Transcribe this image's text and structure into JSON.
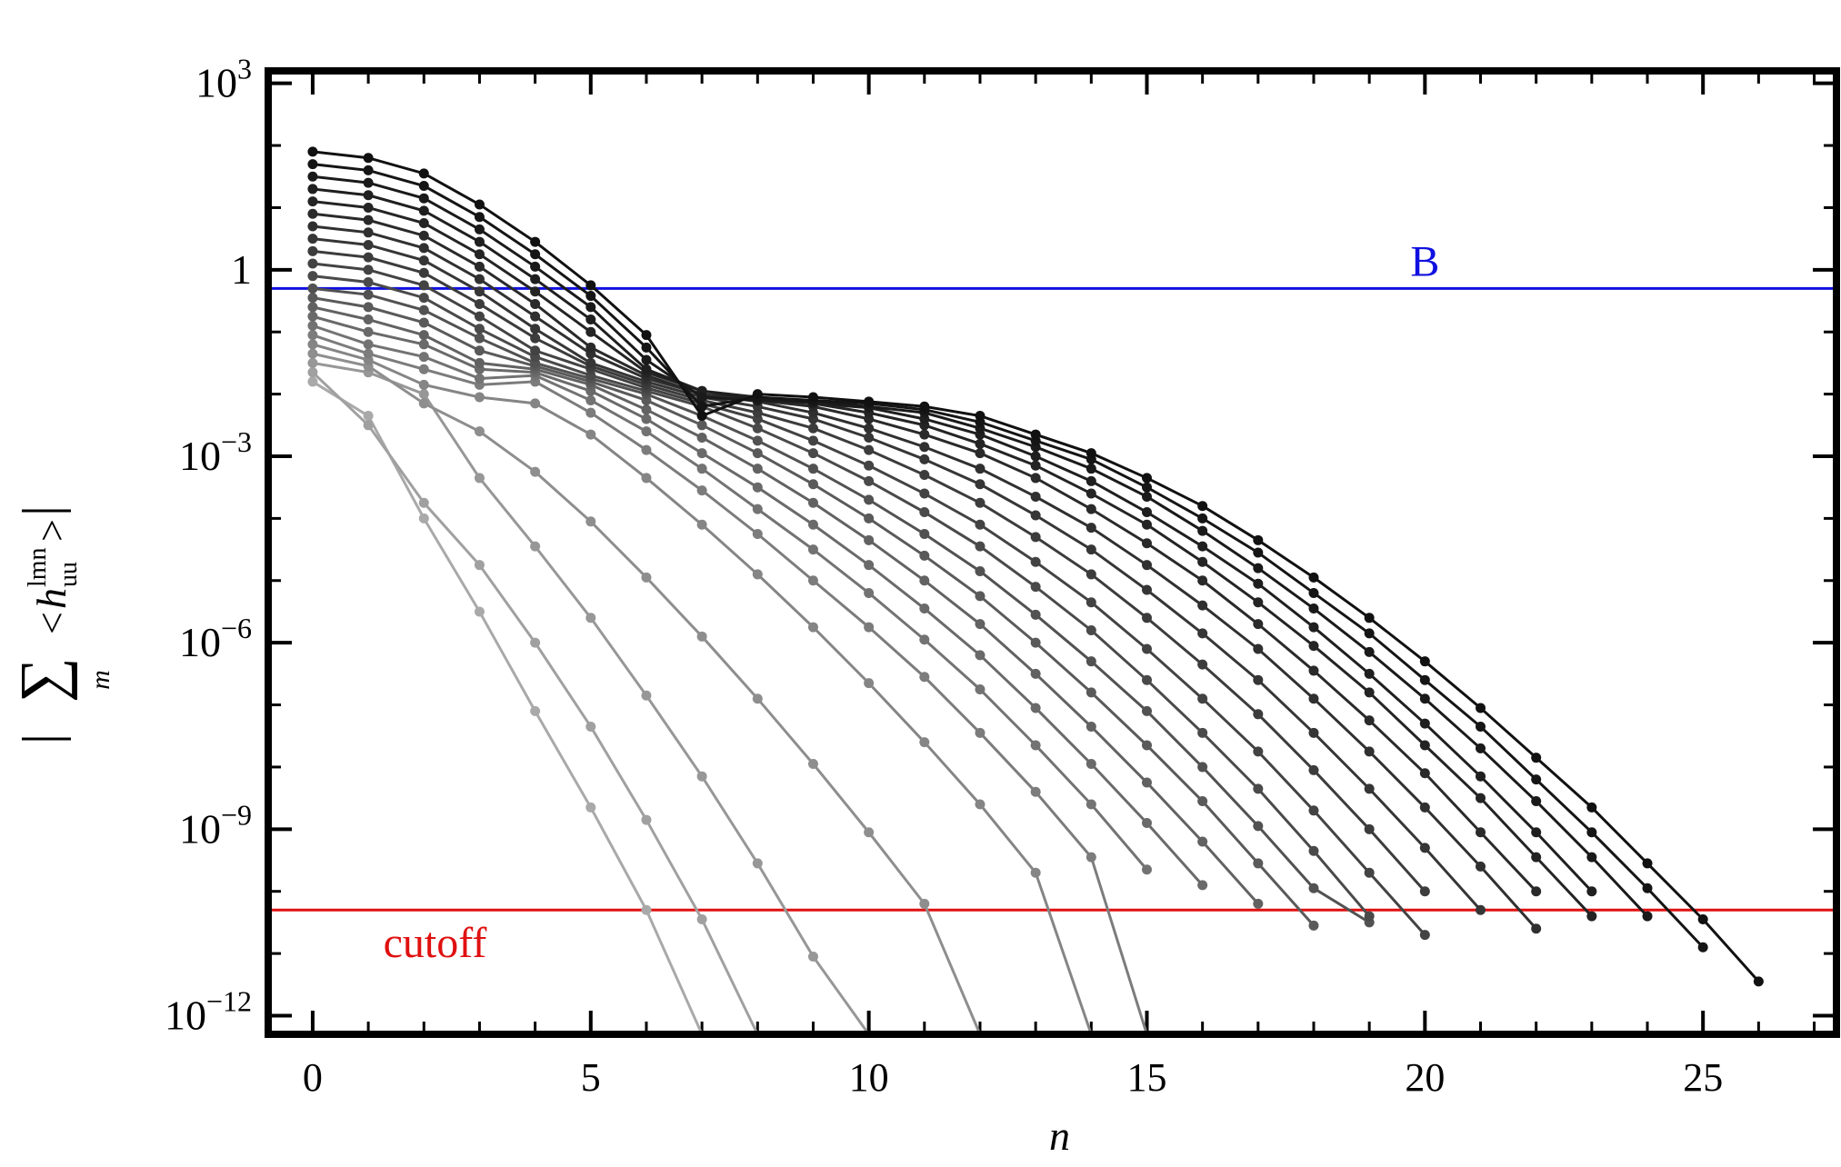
{
  "chart_data": {
    "type": "line",
    "xlabel": "n",
    "ylabel_sum": "∑",
    "ylabel_sub": "m",
    "ylabel_sup": "lmn",
    "ylabel_var_sub": "uu",
    "xlim": [
      -0.8,
      27.4
    ],
    "ylim_log10": [
      -12.3,
      3.2
    ],
    "y_scale": "log",
    "xticks": [
      0,
      5,
      10,
      15,
      20,
      25
    ],
    "xtick_labels": [
      "0",
      "5",
      "10",
      "15",
      "20",
      "25"
    ],
    "yticks_log10": [
      3,
      0,
      -3,
      -6,
      -9,
      -12
    ],
    "ytick_labels": [
      {
        "base": "10",
        "exp": "3"
      },
      {
        "base": "1",
        "exp": ""
      },
      {
        "base": "10",
        "exp": "−3"
      },
      {
        "base": "10",
        "exp": "−6"
      },
      {
        "base": "10",
        "exp": "−9"
      },
      {
        "base": "10",
        "exp": "−12"
      }
    ],
    "reference_lines": [
      {
        "label": "B",
        "log10_value": -0.3,
        "color": "#1010e0",
        "label_x": 20
      },
      {
        "label": "cutoff",
        "log10_value": -10.3,
        "color": "#e01010",
        "label_x": 2.2
      }
    ],
    "series": [
      {
        "color": "#111111",
        "log10_y": [
          1.9,
          1.8,
          1.55,
          1.05,
          0.45,
          -0.25,
          -1.05,
          -2.35,
          -2.0,
          -2.05,
          -2.12,
          -2.2,
          -2.35,
          -2.65,
          -2.95,
          -3.35,
          -3.8,
          -4.35,
          -4.95,
          -5.6,
          -6.3,
          -7.05,
          -7.85,
          -8.65,
          -9.55,
          -10.45,
          -11.45
        ]
      },
      {
        "color": "#151515",
        "log10_y": [
          1.7,
          1.6,
          1.35,
          0.85,
          0.25,
          -0.42,
          -1.25,
          -2.2,
          -2.05,
          -2.1,
          -2.15,
          -2.25,
          -2.45,
          -2.75,
          -3.05,
          -3.5,
          -4.0,
          -4.55,
          -5.2,
          -5.85,
          -6.6,
          -7.35,
          -8.2,
          -9.05,
          -9.95,
          -10.9
        ]
      },
      {
        "color": "#1a1a1a",
        "log10_y": [
          1.5,
          1.4,
          1.15,
          0.65,
          0.05,
          -0.6,
          -1.45,
          -2.05,
          -2.1,
          -2.12,
          -2.2,
          -2.3,
          -2.55,
          -2.85,
          -3.2,
          -3.65,
          -4.2,
          -4.8,
          -5.45,
          -6.15,
          -6.9,
          -7.7,
          -8.55,
          -9.45,
          -10.4
        ]
      },
      {
        "color": "#1f1f1f",
        "log10_y": [
          1.3,
          1.2,
          0.95,
          0.45,
          -0.15,
          -0.8,
          -1.6,
          -1.95,
          -2.08,
          -2.15,
          -2.22,
          -2.4,
          -2.65,
          -3.0,
          -3.4,
          -3.9,
          -4.45,
          -5.05,
          -5.75,
          -6.5,
          -7.3,
          -8.15,
          -9.05,
          -10.0
        ]
      },
      {
        "color": "#242424",
        "log10_y": [
          1.1,
          1.0,
          0.75,
          0.25,
          -0.35,
          -1.0,
          -1.65,
          -1.95,
          -2.05,
          -2.15,
          -2.3,
          -2.5,
          -2.8,
          -3.15,
          -3.6,
          -4.1,
          -4.7,
          -5.35,
          -6.05,
          -6.8,
          -7.65,
          -8.5,
          -9.45,
          -10.4
        ]
      },
      {
        "color": "#2a2a2a",
        "log10_y": [
          0.9,
          0.8,
          0.55,
          0.05,
          -0.55,
          -1.25,
          -1.7,
          -2.0,
          -2.1,
          -2.2,
          -2.4,
          -2.65,
          -2.95,
          -3.35,
          -3.85,
          -4.4,
          -5.0,
          -5.7,
          -6.45,
          -7.25,
          -8.1,
          -9.05,
          -10.0
        ]
      },
      {
        "color": "#303030",
        "log10_y": [
          0.7,
          0.6,
          0.35,
          -0.15,
          -0.75,
          -1.35,
          -1.75,
          -2.0,
          -2.12,
          -2.3,
          -2.55,
          -2.85,
          -3.2,
          -3.65,
          -4.15,
          -4.75,
          -5.4,
          -6.1,
          -6.9,
          -7.75,
          -8.65,
          -9.6,
          -10.6
        ]
      },
      {
        "color": "#363636",
        "log10_y": [
          0.5,
          0.4,
          0.15,
          -0.35,
          -0.95,
          -1.5,
          -1.8,
          -2.05,
          -2.2,
          -2.4,
          -2.7,
          -3.05,
          -3.45,
          -3.95,
          -4.5,
          -5.15,
          -5.85,
          -6.6,
          -7.45,
          -8.35,
          -9.3,
          -10.3
        ]
      },
      {
        "color": "#3c3c3c",
        "log10_y": [
          0.3,
          0.2,
          -0.05,
          -0.55,
          -1.1,
          -1.55,
          -1.85,
          -2.1,
          -2.3,
          -2.55,
          -2.9,
          -3.3,
          -3.75,
          -4.3,
          -4.9,
          -5.6,
          -6.35,
          -7.15,
          -8.05,
          -9.0,
          -10.0
        ]
      },
      {
        "color": "#434343",
        "log10_y": [
          0.1,
          0.0,
          -0.25,
          -0.75,
          -1.3,
          -1.6,
          -1.9,
          -2.15,
          -2.4,
          -2.75,
          -3.15,
          -3.6,
          -4.1,
          -4.7,
          -5.35,
          -6.1,
          -6.9,
          -7.75,
          -8.7,
          -9.7,
          -10.7
        ]
      },
      {
        "color": "#4a4a4a",
        "log10_y": [
          -0.1,
          -0.2,
          -0.45,
          -0.95,
          -1.4,
          -1.7,
          -1.95,
          -2.2,
          -2.55,
          -2.95,
          -3.4,
          -3.9,
          -4.45,
          -5.1,
          -5.8,
          -6.6,
          -7.45,
          -8.35,
          -9.35,
          -10.4
        ]
      },
      {
        "color": "#525252",
        "log10_y": [
          -0.3,
          -0.4,
          -0.65,
          -1.1,
          -1.5,
          -1.75,
          -2.0,
          -2.35,
          -2.75,
          -3.2,
          -3.7,
          -4.25,
          -4.85,
          -5.55,
          -6.3,
          -7.1,
          -8.0,
          -8.95,
          -9.95,
          -10.5
        ]
      },
      {
        "color": "#5a5a5a",
        "log10_y": [
          -0.45,
          -0.6,
          -0.85,
          -1.3,
          -1.55,
          -1.8,
          -2.1,
          -2.5,
          -2.95,
          -3.45,
          -4.0,
          -4.6,
          -5.25,
          -6.0,
          -6.8,
          -7.65,
          -8.55,
          -9.55,
          -10.55
        ]
      },
      {
        "color": "#626262",
        "log10_y": [
          -0.6,
          -0.8,
          -1.05,
          -1.5,
          -1.6,
          -1.85,
          -2.25,
          -2.7,
          -3.2,
          -3.75,
          -4.35,
          -5.0,
          -5.7,
          -6.5,
          -7.35,
          -8.25,
          -9.2,
          -10.2
        ]
      },
      {
        "color": "#6a6a6a",
        "log10_y": [
          -0.75,
          -1.0,
          -1.2,
          -1.6,
          -1.65,
          -1.95,
          -2.4,
          -2.95,
          -3.5,
          -4.1,
          -4.75,
          -5.45,
          -6.2,
          -7.05,
          -7.95,
          -8.9,
          -9.9
        ]
      },
      {
        "color": "#737373",
        "log10_y": [
          -0.9,
          -1.2,
          -1.4,
          -1.75,
          -1.7,
          -2.1,
          -2.6,
          -3.2,
          -3.85,
          -4.5,
          -5.2,
          -5.95,
          -6.75,
          -7.65,
          -8.6,
          -9.65
        ]
      },
      {
        "color": "#7c7c7c",
        "log10_y": [
          -1.05,
          -1.35,
          -1.6,
          -1.85,
          -1.8,
          -2.3,
          -2.9,
          -3.55,
          -4.25,
          -5.0,
          -5.75,
          -6.55,
          -7.45,
          -8.4,
          -9.45,
          -12.3
        ]
      },
      {
        "color": "#858585",
        "log10_y": [
          -1.2,
          -1.45,
          -1.85,
          -2.05,
          -2.15,
          -2.65,
          -3.35,
          -4.1,
          -4.9,
          -5.75,
          -6.65,
          -7.6,
          -8.6,
          -9.7,
          -12.3
        ]
      },
      {
        "color": "#8e8e8e",
        "log10_y": [
          -1.35,
          -1.55,
          -2.15,
          -2.6,
          -3.25,
          -4.05,
          -4.95,
          -5.9,
          -6.9,
          -7.95,
          -9.05,
          -10.2,
          -12.3
        ]
      },
      {
        "color": "#979797",
        "log10_y": [
          -1.5,
          -1.65,
          -2.0,
          -3.35,
          -4.45,
          -5.6,
          -6.85,
          -8.15,
          -9.55,
          -11.05,
          -12.3
        ]
      },
      {
        "color": "#a0a0a0",
        "log10_y": [
          -1.65,
          -2.5,
          -3.75,
          -4.75,
          -6.0,
          -7.35,
          -8.85,
          -10.45,
          -12.3
        ]
      },
      {
        "color": "#a9a9a9",
        "log10_y": [
          -1.8,
          -2.35,
          -4.0,
          -5.5,
          -7.1,
          -8.65,
          -10.3,
          -12.3
        ]
      }
    ]
  }
}
